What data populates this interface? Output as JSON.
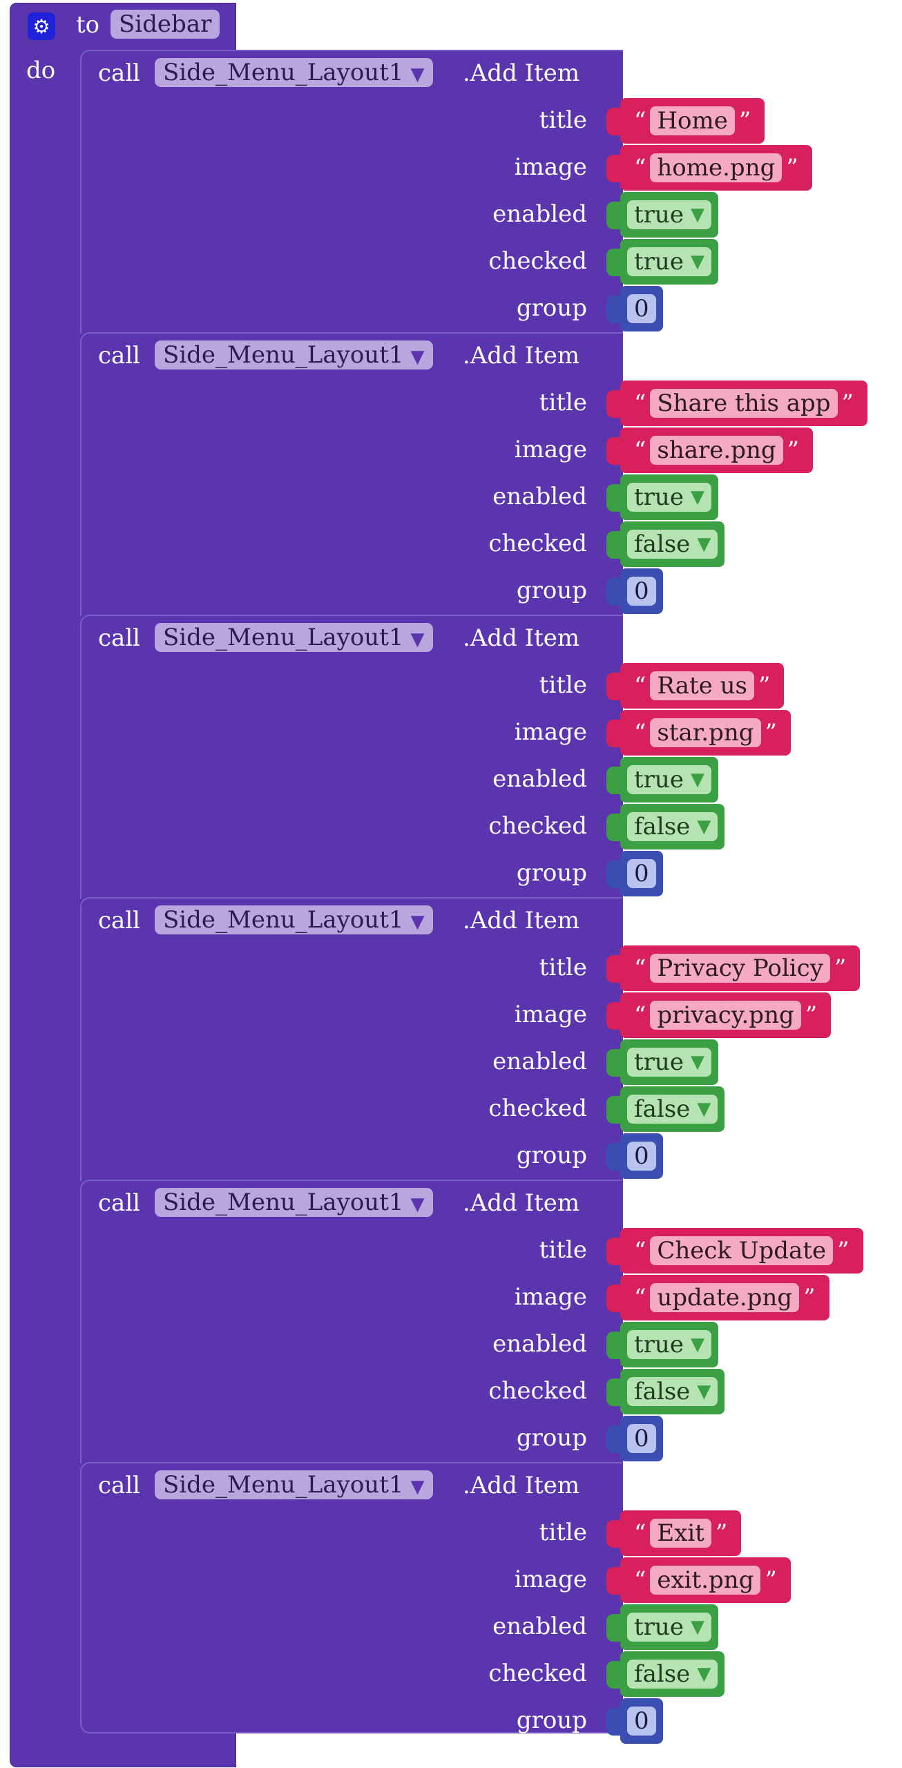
{
  "procedure": {
    "keyword_to": "to",
    "name": "Sidebar",
    "keyword_do": "do",
    "icon": "gear-icon"
  },
  "calls": [
    {
      "call": "call",
      "component": "Side_Menu_Layout1",
      "method": ".Add Item",
      "title": "Home",
      "image": "home.png",
      "enabled": "true",
      "checked": "true",
      "group": "0"
    },
    {
      "call": "call",
      "component": "Side_Menu_Layout1",
      "method": ".Add Item",
      "title": "Share this app",
      "image": "share.png",
      "enabled": "true",
      "checked": "false",
      "group": "0"
    },
    {
      "call": "call",
      "component": "Side_Menu_Layout1",
      "method": ".Add Item",
      "title": "Rate us",
      "image": "star.png",
      "enabled": "true",
      "checked": "false",
      "group": "0"
    },
    {
      "call": "call",
      "component": "Side_Menu_Layout1",
      "method": ".Add Item",
      "title": "Privacy Policy",
      "image": "privacy.png",
      "enabled": "true",
      "checked": "false",
      "group": "0"
    },
    {
      "call": "call",
      "component": "Side_Menu_Layout1",
      "method": ".Add Item",
      "title": "Check Update",
      "image": "update.png",
      "enabled": "true",
      "checked": "false",
      "group": "0"
    },
    {
      "call": "call",
      "component": "Side_Menu_Layout1",
      "method": ".Add Item",
      "title": "Exit",
      "image": "exit.png",
      "enabled": "true",
      "checked": "false",
      "group": "0"
    }
  ],
  "labels": {
    "title": "title",
    "image": "image",
    "enabled": "enabled",
    "checked": "checked",
    "group": "group"
  },
  "colors": {
    "procedure": "#5b35ad",
    "text": "#d8205c",
    "logic": "#3aa043",
    "math": "#3b4fb3"
  }
}
